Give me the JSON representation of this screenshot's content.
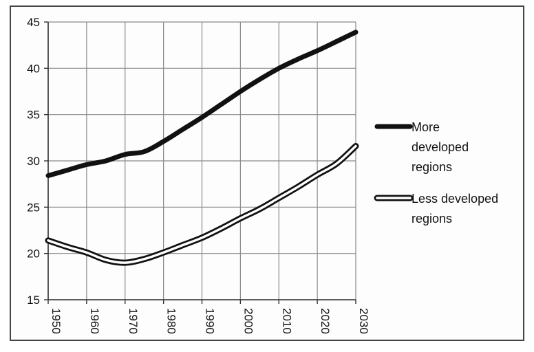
{
  "chart_data": {
    "type": "line",
    "title": "",
    "xlabel": "",
    "ylabel": "",
    "x": [
      1950,
      1955,
      1960,
      1965,
      1970,
      1975,
      1980,
      1985,
      1990,
      1995,
      2000,
      2005,
      2010,
      2015,
      2020,
      2025,
      2030
    ],
    "xlim": [
      1950,
      2030
    ],
    "ylim": [
      15,
      45
    ],
    "x_ticks": [
      "1950",
      "1960",
      "1970",
      "1980",
      "1990",
      "2000",
      "2010",
      "2020",
      "2030"
    ],
    "y_ticks": [
      "15",
      "20",
      "25",
      "30",
      "35",
      "40",
      "45"
    ],
    "grid": true,
    "legend_position": "right",
    "series": [
      {
        "name": "More developed regions",
        "legend_lines": [
          "More",
          "developed",
          "regions"
        ],
        "style": "solid-thick",
        "color": "#111111",
        "values": [
          28.4,
          29.0,
          29.6,
          30.0,
          30.7,
          31.0,
          32.1,
          33.4,
          34.7,
          36.1,
          37.5,
          38.8,
          40.0,
          41.0,
          41.9,
          42.9,
          43.9
        ]
      },
      {
        "name": "Less developed regions",
        "legend_lines": [
          "Less developed",
          "regions"
        ],
        "style": "double-outline",
        "color": "#111111",
        "values": [
          21.4,
          20.7,
          20.1,
          19.3,
          19.0,
          19.4,
          20.1,
          20.9,
          21.7,
          22.7,
          23.8,
          24.8,
          26.0,
          27.2,
          28.5,
          29.7,
          31.6
        ]
      }
    ]
  }
}
